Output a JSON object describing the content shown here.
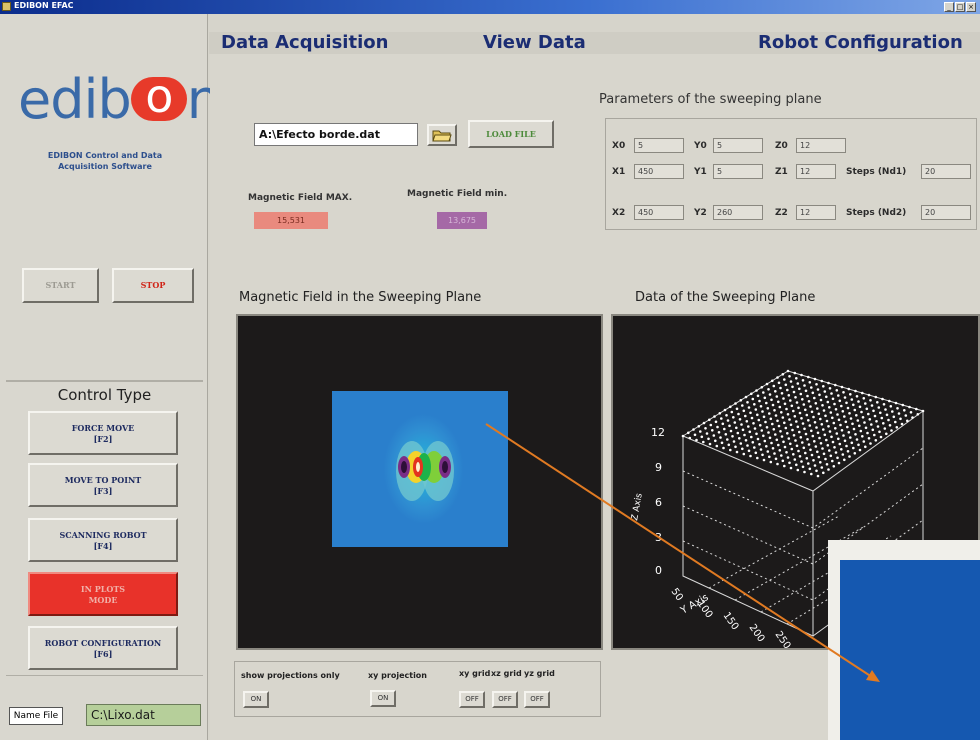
{
  "window": {
    "title": "EDIBON EFAC",
    "controls": [
      "_",
      "□",
      "×"
    ]
  },
  "logo": {
    "text_pre": "edib",
    "text_o": "o",
    "text_post": "n"
  },
  "sidebar": {
    "subtitle_line1": "EDIBON Control and Data",
    "subtitle_line2": "Acquisition Software",
    "start_label": "START",
    "stop_label": "STOP",
    "control_title": "Control Type",
    "control_buttons": [
      {
        "line1": "FORCE MOVE",
        "line2": "[F2]"
      },
      {
        "line1": "MOVE TO POINT",
        "line2": "[F3]"
      },
      {
        "line1": "SCANNING ROBOT",
        "line2": "[F4]"
      },
      {
        "line1": "IN PLOTS",
        "line2": "MODE"
      },
      {
        "line1": "ROBOT CONFIGURATION",
        "line2": "[F6]"
      }
    ],
    "namefile_label": "Name File",
    "namefile_value": "C:\\Lixo.dat"
  },
  "tabs": [
    {
      "label": "Data Acquisition"
    },
    {
      "label": "View Data"
    },
    {
      "label": "Robot Configuration"
    }
  ],
  "file": {
    "path": "A:\\Efecto borde.dat",
    "load_label": "LOAD FILE"
  },
  "magnetic": {
    "max_label": "Magnetic Field MAX.",
    "min_label": "Magnetic Field min.",
    "max_value": "15,531",
    "min_value": "13,675"
  },
  "params": {
    "title": "Parameters of the sweeping plane",
    "x0_label": "X0",
    "x0": "5",
    "y0_label": "Y0",
    "y0": "5",
    "z0_label": "Z0",
    "z0": "12",
    "x1_label": "X1",
    "x1": "450",
    "y1_label": "Y1",
    "y1": "5",
    "z1_label": "Z1",
    "z1": "12",
    "steps1_label": "Steps (Nd1)",
    "steps1": "20",
    "x2_label": "X2",
    "x2": "450",
    "y2_label": "Y2",
    "y2": "260",
    "z2_label": "Z2",
    "z2": "12",
    "steps2_label": "Steps (Nd2)",
    "steps2": "20"
  },
  "plots": {
    "left_title": "Magnetic Field in the Sweeping Plane",
    "right_title": "Data of the Sweeping Plane",
    "z_ticks": [
      "12",
      "9",
      "6",
      "3",
      "0"
    ],
    "y_ticks": [
      "50",
      "100",
      "150",
      "200",
      "250"
    ],
    "z_axis_label": "Z Axis",
    "y_axis_label": "Y Axis"
  },
  "options": [
    {
      "label": "show projections only",
      "state": "ON"
    },
    {
      "label": "xy projection",
      "state": "ON"
    },
    {
      "label": "xy grid",
      "state": "OFF"
    },
    {
      "label": "xz grid",
      "state": "OFF"
    },
    {
      "label": "yz grid",
      "state": "OFF"
    }
  ],
  "colors": {
    "accent_red": "#e8322a",
    "brand_blue": "#3a6aa8",
    "tab_text": "#1b2d73",
    "arrow": "#e07a22"
  }
}
